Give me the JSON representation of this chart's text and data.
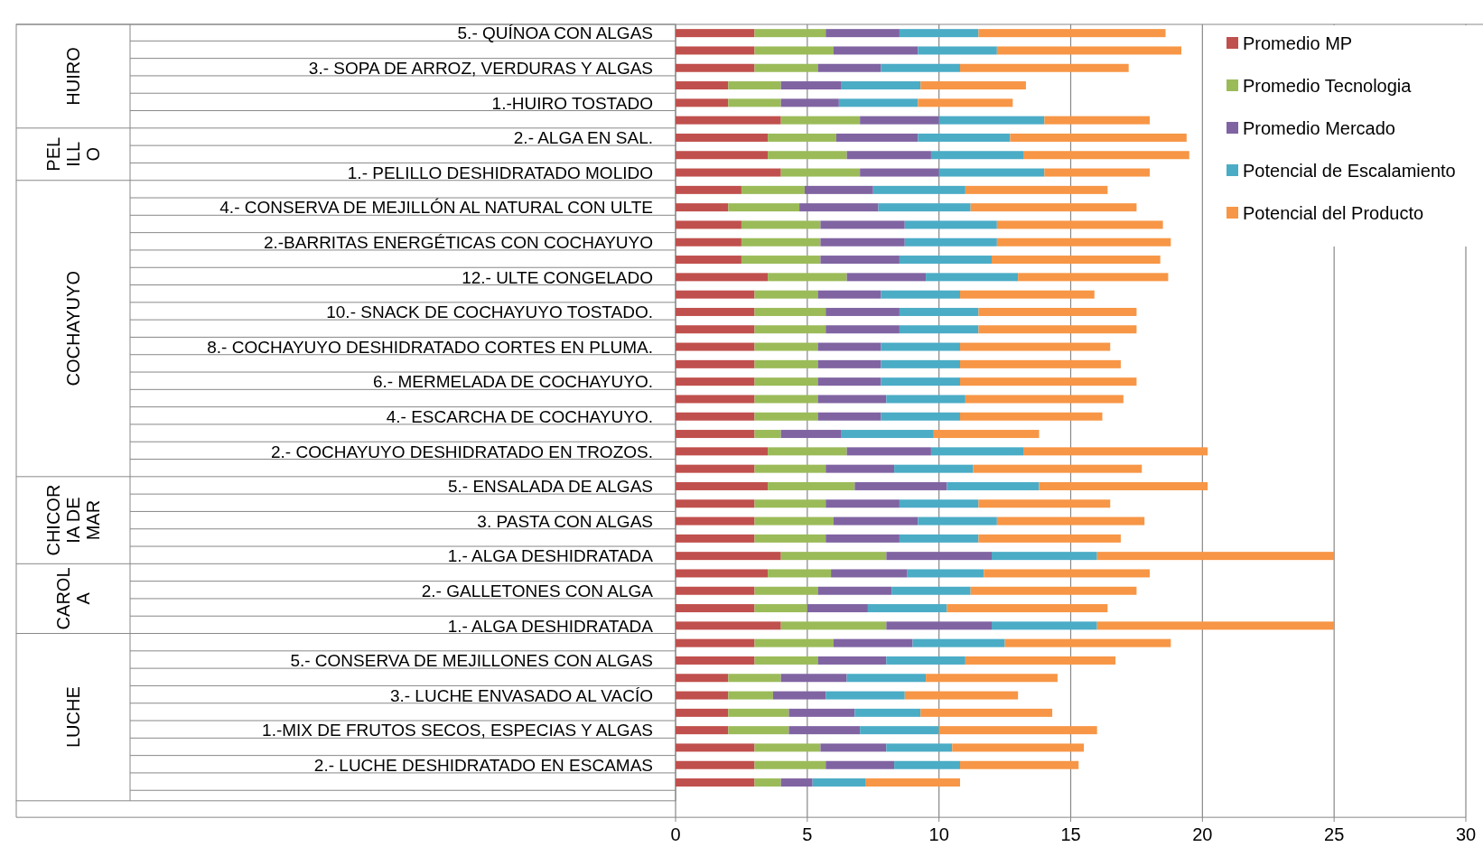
{
  "chart_data": {
    "type": "bar",
    "orientation": "horizontal",
    "stacked": true,
    "categories": [
      "5.- QUÍNOA CON ALGAS",
      null,
      "3.- SOPA DE ARROZ, VERDURAS Y ALGAS",
      null,
      "1.-HUIRO TOSTADO",
      null,
      "2.- ALGA EN SAL.",
      null,
      "1.- PELILLO DESHIDRATADO MOLIDO",
      null,
      "4.- CONSERVA DE MEJILLÓN AL NATURAL CON ULTE",
      null,
      "2.-BARRITAS ENERGÉTICAS CON COCHAYUYO",
      null,
      "12.- ULTE CONGELADO",
      null,
      "10.- SNACK DE COCHAYUYO TOSTADO.",
      null,
      "8.- COCHAYUYO DESHIDRATADO CORTES EN PLUMA.",
      null,
      "6.- MERMELADA DE COCHAYUYO.",
      null,
      "4.- ESCARCHA DE COCHAYUYO.",
      null,
      "2.- COCHAYUYO DESHIDRATADO EN TROZOS.",
      null,
      "5.- ENSALADA DE ALGAS",
      null,
      "3. PASTA CON ALGAS",
      null,
      "1.- ALGA DESHIDRATADA",
      null,
      "2.- GALLETONES CON ALGA",
      null,
      "1.- ALGA DESHIDRATADA",
      null,
      "5.- CONSERVA DE MEJILLONES CON ALGAS",
      null,
      "3.- LUCHE ENVASADO AL VACÍO",
      null,
      "1.-MIX DE FRUTOS SECOS, ESPECIAS Y ALGAS",
      null,
      "2.- LUCHE DESHIDRATADO EN ESCAMAS",
      null
    ],
    "series": [
      {
        "name": "Promedio MP",
        "color": "#c0504d",
        "values": [
          3,
          3,
          3,
          2,
          2,
          4,
          3.5,
          3.5,
          4,
          2.5,
          2,
          2.5,
          2.5,
          2.5,
          3.5,
          3,
          3,
          3,
          3,
          3,
          3,
          3,
          3,
          3,
          3.5,
          3,
          3.5,
          3,
          3,
          3,
          4,
          3.5,
          3,
          3,
          4,
          3,
          3,
          2,
          2,
          2,
          2,
          3,
          3,
          3
        ]
      },
      {
        "name": "Promedio Tecnologia",
        "color": "#9bbb59",
        "values": [
          2.7,
          3,
          2.4,
          2,
          2,
          3,
          2.6,
          3,
          3,
          2.4,
          2.7,
          3,
          3,
          3,
          3,
          2.4,
          2.7,
          2.7,
          2.4,
          2.4,
          2.4,
          2.4,
          2.4,
          1,
          3,
          2.7,
          3.3,
          2.7,
          3,
          2.7,
          4,
          2.4,
          2.4,
          2,
          4,
          3,
          2.4,
          2,
          1.7,
          2.3,
          2.3,
          2.5,
          2.7,
          1
        ]
      },
      {
        "name": "Promedio Mercado",
        "color": "#8064a2",
        "values": [
          2.8,
          3.2,
          2.4,
          2.3,
          2.2,
          3,
          3.1,
          3.2,
          3,
          2.6,
          3,
          3.2,
          3.2,
          3,
          3,
          2.4,
          2.8,
          2.8,
          2.4,
          2.4,
          2.4,
          2.6,
          2.4,
          2.3,
          3.2,
          2.6,
          3.5,
          2.8,
          3.2,
          2.8,
          4,
          2.9,
          2.8,
          2.3,
          4,
          3,
          2.6,
          2.5,
          2,
          2.5,
          2.7,
          2.5,
          2.6,
          1.2
        ]
      },
      {
        "name": "Potencial de Escalamiento",
        "color": "#4bacc6",
        "values": [
          3,
          3,
          3,
          3,
          3,
          4,
          3.5,
          3.5,
          4,
          3.5,
          3.5,
          3.5,
          3.5,
          3.5,
          3.5,
          3,
          3,
          3,
          3,
          3,
          3,
          3,
          3,
          3.5,
          3.5,
          3,
          3.5,
          3,
          3,
          3,
          4,
          2.9,
          3,
          3,
          4,
          3.5,
          3,
          3,
          3,
          2.5,
          3,
          2.5,
          2.5,
          2
        ]
      },
      {
        "name": "Potencial del Producto",
        "color": "#f79646",
        "values": [
          7.1,
          7,
          6.4,
          4,
          3.6,
          4,
          6.7,
          6.3,
          4,
          5.4,
          6.3,
          6.3,
          6.6,
          6.4,
          5.7,
          5.1,
          6,
          6,
          5.7,
          6.1,
          6.7,
          6,
          5.4,
          4,
          7,
          6.4,
          6.4,
          5,
          5.6,
          5.4,
          9,
          6.3,
          6.3,
          6.1,
          9,
          6.3,
          5.7,
          5,
          4.3,
          5,
          6,
          5,
          4.5,
          3.6
        ]
      }
    ],
    "xlim": [
      0,
      30
    ],
    "xticks": [
      0,
      5,
      10,
      15,
      20,
      25,
      30
    ],
    "grid": "x",
    "legend": "top right",
    "annotations": [
      "HUIRO",
      "PELILLO",
      "COCHAYUYO",
      "CHICORIA DE MAR",
      "CAROLA",
      "LUCHE"
    ]
  }
}
